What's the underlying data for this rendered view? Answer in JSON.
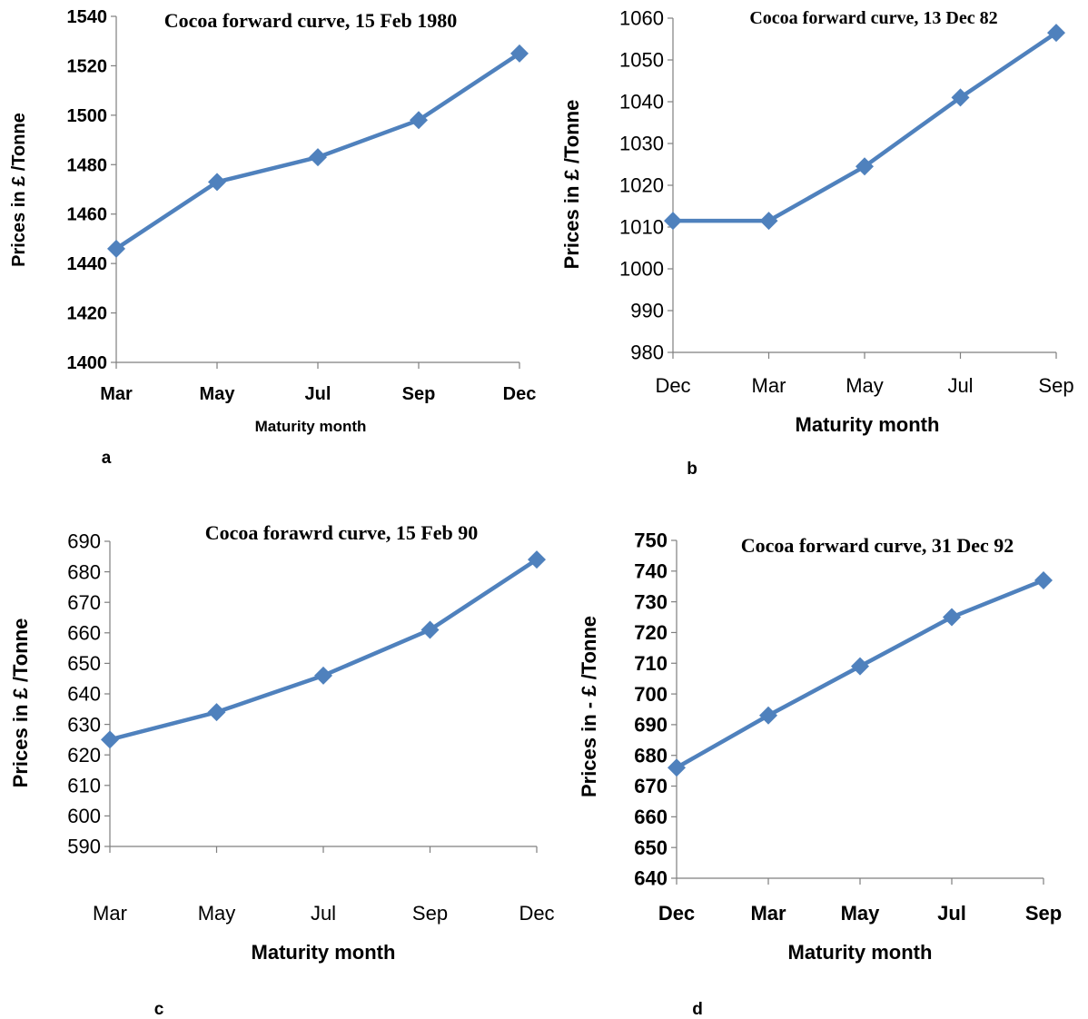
{
  "chart_data": [
    {
      "panel": "a",
      "type": "line",
      "title": "Cocoa forward curve, 15 Feb 1980",
      "xlabel": "Maturity month",
      "ylabel": "Prices in  £ /Tonne",
      "categories": [
        "Mar",
        "May",
        "Jul",
        "Sep",
        "Dec"
      ],
      "values": [
        1446,
        1473,
        1483,
        1498,
        1525
      ],
      "ylim": [
        1400,
        1540
      ],
      "yticks": [
        1400,
        1420,
        1440,
        1460,
        1480,
        1500,
        1520,
        1540
      ],
      "grid": false,
      "color": "#4f81bd"
    },
    {
      "panel": "b",
      "type": "line",
      "title": "Cocoa forward curve, 13 Dec 82",
      "xlabel": "Maturity month",
      "ylabel": "Prices in £ /Tonne",
      "categories": [
        "Dec",
        "Mar",
        "May",
        "Jul",
        "Sep"
      ],
      "values": [
        1011.5,
        1011.5,
        1024.5,
        1041,
        1056.5
      ],
      "ylim": [
        980,
        1060
      ],
      "yticks": [
        980,
        990,
        1000,
        1010,
        1020,
        1030,
        1040,
        1050,
        1060
      ],
      "grid": false,
      "color": "#4f81bd"
    },
    {
      "panel": "c",
      "type": "line",
      "title": "Cocoa forawrd curve, 15 Feb 90",
      "xlabel": "Maturity month",
      "ylabel": "Prices in £ /Tonne",
      "categories": [
        "Mar",
        "May",
        "Jul",
        "Sep",
        "Dec"
      ],
      "values": [
        625,
        634,
        646,
        661,
        684
      ],
      "ylim": [
        590,
        690
      ],
      "yticks": [
        590,
        600,
        610,
        620,
        630,
        640,
        650,
        660,
        670,
        680,
        690
      ],
      "grid": false,
      "color": "#4f81bd"
    },
    {
      "panel": "d",
      "type": "line",
      "title": "Cocoa forward curve, 31 Dec 92",
      "xlabel": "Maturity month",
      "ylabel": "Prices in - £ /Tonne",
      "categories": [
        "Dec",
        "Mar",
        "May",
        "Jul",
        "Sep"
      ],
      "values": [
        676,
        693,
        709,
        725,
        737
      ],
      "ylim": [
        640,
        750
      ],
      "yticks": [
        640,
        650,
        660,
        670,
        680,
        690,
        700,
        710,
        720,
        730,
        740,
        750
      ],
      "grid": false,
      "color": "#4f81bd"
    }
  ]
}
